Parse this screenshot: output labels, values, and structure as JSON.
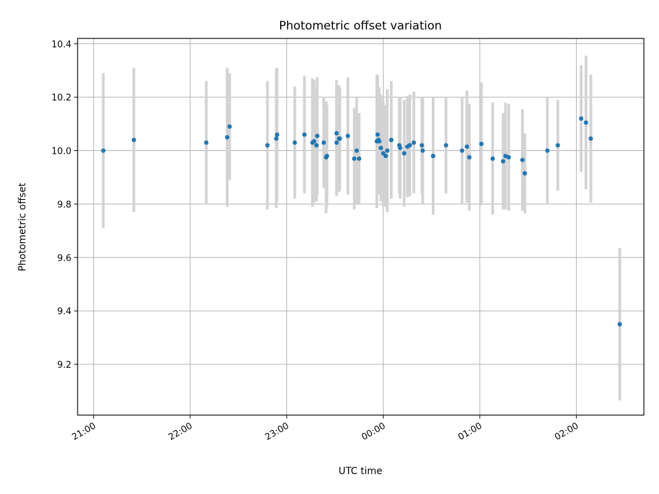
{
  "chart_data": {
    "type": "scatter",
    "title": "Photometric offset variation",
    "xlabel": "UTC time",
    "ylabel": "Photometric offset",
    "x_tick_labels": [
      "21:00",
      "22:00",
      "23:00",
      "00:00",
      "01:00",
      "02:00"
    ],
    "y_tick_labels": [
      "9.2",
      "9.4",
      "9.6",
      "9.8",
      "10.0",
      "10.2",
      "10.4"
    ],
    "x_tick_values": [
      -180,
      -120,
      -60,
      0,
      60,
      120
    ],
    "y_tick_values": [
      9.2,
      9.4,
      9.6,
      9.8,
      10.0,
      10.2,
      10.4
    ],
    "xlim": [
      -190,
      162
    ],
    "ylim": [
      9.01,
      10.42
    ],
    "x_unit": "minutes relative to 00:00 UTC",
    "grid": true,
    "point_color": "#1f77b4",
    "errorbar_color": "#d3d3d3",
    "series": [
      {
        "points": [
          {
            "x": -174,
            "y": 10.0,
            "err": 0.29
          },
          {
            "x": -155,
            "y": 10.04,
            "err": 0.27
          },
          {
            "x": -110,
            "y": 10.03,
            "err": 0.23
          },
          {
            "x": -97,
            "y": 10.05,
            "err": 0.26
          },
          {
            "x": -95.5,
            "y": 10.09,
            "err": 0.2
          },
          {
            "x": -72,
            "y": 10.02,
            "err": 0.24
          },
          {
            "x": -66.5,
            "y": 10.045,
            "err": 0.26
          },
          {
            "x": -66,
            "y": 10.06,
            "err": 0.25
          },
          {
            "x": -55,
            "y": 10.03,
            "err": 0.21
          },
          {
            "x": -49,
            "y": 10.06,
            "err": 0.22
          },
          {
            "x": -44,
            "y": 10.03,
            "err": 0.24
          },
          {
            "x": -43,
            "y": 10.035,
            "err": 0.23
          },
          {
            "x": -41.5,
            "y": 10.02,
            "err": 0.21
          },
          {
            "x": -41,
            "y": 10.055,
            "err": 0.22
          },
          {
            "x": -37,
            "y": 10.03,
            "err": 0.17
          },
          {
            "x": -35.5,
            "y": 9.975,
            "err": 0.21
          },
          {
            "x": -35,
            "y": 9.98,
            "err": 0.19
          },
          {
            "x": -29,
            "y": 10.065,
            "err": 0.2
          },
          {
            "x": -29,
            "y": 10.03,
            "err": 0.2
          },
          {
            "x": -27.5,
            "y": 10.045,
            "err": 0.2
          },
          {
            "x": -27,
            "y": 10.045,
            "err": 0.19
          },
          {
            "x": -22,
            "y": 10.055,
            "err": 0.22
          },
          {
            "x": -18,
            "y": 9.97,
            "err": 0.19
          },
          {
            "x": -16.5,
            "y": 10.0,
            "err": 0.2
          },
          {
            "x": -15,
            "y": 9.97,
            "err": 0.17
          },
          {
            "x": -4,
            "y": 10.035,
            "err": 0.25
          },
          {
            "x": -3.5,
            "y": 10.06,
            "err": 0.22
          },
          {
            "x": -3,
            "y": 10.04,
            "err": 0.2
          },
          {
            "x": -2.5,
            "y": 10.035,
            "err": 0.2
          },
          {
            "x": -1.5,
            "y": 10.01,
            "err": 0.2
          },
          {
            "x": 0,
            "y": 9.99,
            "err": 0.2
          },
          {
            "x": 1.5,
            "y": 9.98,
            "err": 0.19
          },
          {
            "x": 2.5,
            "y": 10.0,
            "err": 0.23
          },
          {
            "x": 5,
            "y": 10.04,
            "err": 0.22
          },
          {
            "x": 10,
            "y": 10.02,
            "err": 0.18
          },
          {
            "x": 10.5,
            "y": 10.01,
            "err": 0.19
          },
          {
            "x": 13,
            "y": 9.99,
            "err": 0.2
          },
          {
            "x": 15,
            "y": 10.015,
            "err": 0.19
          },
          {
            "x": 16.5,
            "y": 10.02,
            "err": 0.19
          },
          {
            "x": 19,
            "y": 10.03,
            "err": 0.19
          },
          {
            "x": 24,
            "y": 10.02,
            "err": 0.18
          },
          {
            "x": 24.5,
            "y": 10.0,
            "err": 0.2
          },
          {
            "x": 31,
            "y": 9.98,
            "err": 0.22
          },
          {
            "x": 39,
            "y": 10.02,
            "err": 0.18
          },
          {
            "x": 49,
            "y": 10.0,
            "err": 0.2
          },
          {
            "x": 52,
            "y": 10.015,
            "err": 0.21
          },
          {
            "x": 53.5,
            "y": 9.975,
            "err": 0.2
          },
          {
            "x": 61,
            "y": 10.025,
            "err": 0.23
          },
          {
            "x": 68,
            "y": 9.97,
            "err": 0.21
          },
          {
            "x": 74.5,
            "y": 9.96,
            "err": 0.18
          },
          {
            "x": 76,
            "y": 9.98,
            "err": 0.2
          },
          {
            "x": 78,
            "y": 9.975,
            "err": 0.2
          },
          {
            "x": 86.5,
            "y": 9.965,
            "err": 0.19
          },
          {
            "x": 88,
            "y": 9.915,
            "err": 0.15
          },
          {
            "x": 102,
            "y": 10.0,
            "err": 0.2
          },
          {
            "x": 108.5,
            "y": 10.02,
            "err": 0.17
          },
          {
            "x": 123,
            "y": 10.12,
            "err": 0.2
          },
          {
            "x": 126,
            "y": 10.105,
            "err": 0.25
          },
          {
            "x": 129,
            "y": 10.045,
            "err": 0.24
          },
          {
            "x": 147,
            "y": 9.35,
            "err": 0.285
          }
        ]
      }
    ]
  }
}
